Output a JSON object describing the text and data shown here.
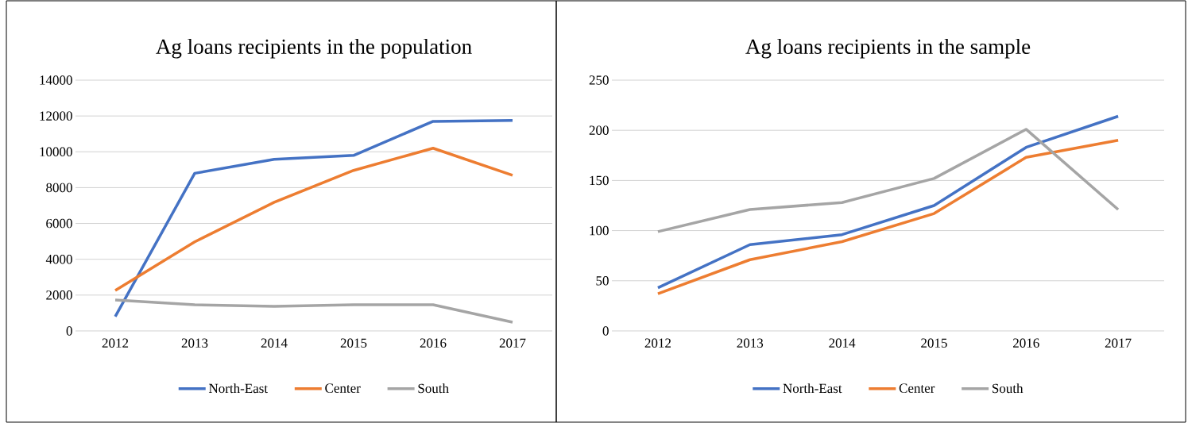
{
  "chart_data": [
    {
      "type": "line",
      "title": "Ag loans recipients in the population",
      "categories": [
        "2012",
        "2013",
        "2014",
        "2015",
        "2016",
        "2017"
      ],
      "series": [
        {
          "name": "North-East",
          "color": "#4472c4",
          "values": [
            800,
            8800,
            9580,
            9800,
            11700,
            11750
          ]
        },
        {
          "name": "Center",
          "color": "#ed7d31",
          "values": [
            2260,
            4970,
            7180,
            8960,
            10200,
            8690
          ]
        },
        {
          "name": "South",
          "color": "#a5a5a5",
          "values": [
            1730,
            1460,
            1370,
            1460,
            1460,
            490
          ]
        }
      ],
      "ylim": [
        0,
        14000
      ],
      "yticks": [
        0,
        2000,
        4000,
        6000,
        8000,
        10000,
        12000,
        14000
      ],
      "grid": "y",
      "legend": "bottom"
    },
    {
      "type": "line",
      "title": "Ag loans recipients in the sample",
      "categories": [
        "2012",
        "2013",
        "2014",
        "2015",
        "2016",
        "2017"
      ],
      "series": [
        {
          "name": "North-East",
          "color": "#4472c4",
          "values": [
            43,
            86,
            96,
            125,
            183,
            214
          ]
        },
        {
          "name": "Center",
          "color": "#ed7d31",
          "values": [
            37,
            71,
            89,
            117,
            173,
            190
          ]
        },
        {
          "name": "South",
          "color": "#a5a5a5",
          "values": [
            99,
            121,
            128,
            152,
            201,
            121
          ]
        }
      ],
      "ylim": [
        0,
        250
      ],
      "yticks": [
        0,
        50,
        100,
        150,
        200,
        250
      ],
      "grid": "y",
      "legend": "bottom"
    }
  ]
}
